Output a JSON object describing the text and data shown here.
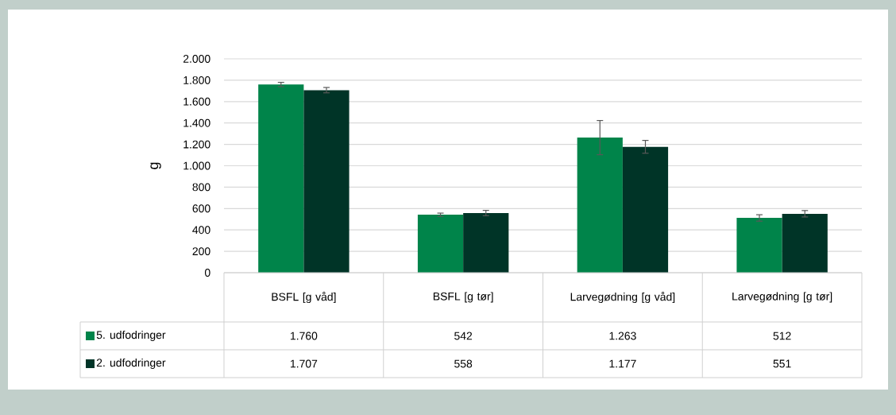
{
  "chart_data": {
    "type": "bar",
    "ylabel": "g",
    "categories": [
      "BSFL [g våd]",
      "BSFL [g tør]",
      "Larvegødning [g våd]",
      "Larvegødning [g tør]"
    ],
    "series": [
      {
        "name": "5. udfodringer",
        "color": "#00844a",
        "values": [
          1760,
          542,
          1263,
          512
        ],
        "errors": [
          20,
          15,
          160,
          30
        ],
        "value_labels": [
          "1.760",
          "542",
          "1.263",
          "512"
        ]
      },
      {
        "name": "2. udfodringer",
        "color": "#003427",
        "values": [
          1707,
          558,
          1177,
          551
        ],
        "errors": [
          25,
          25,
          60,
          30
        ],
        "value_labels": [
          "1.707",
          "558",
          "1.177",
          "551"
        ]
      }
    ],
    "ylim": [
      0,
      2000
    ],
    "yticks": [
      {
        "value": 0,
        "label": "0"
      },
      {
        "value": 200,
        "label": "200"
      },
      {
        "value": 400,
        "label": "400"
      },
      {
        "value": 600,
        "label": "600"
      },
      {
        "value": 800,
        "label": "800"
      },
      {
        "value": 1000,
        "label": "1.000"
      },
      {
        "value": 1200,
        "label": "1.200"
      },
      {
        "value": 1400,
        "label": "1.400"
      },
      {
        "value": 1600,
        "label": "1.600"
      },
      {
        "value": 1800,
        "label": "1.800"
      },
      {
        "value": 2000,
        "label": "2.000"
      }
    ],
    "grid": "y",
    "legend": "bottom"
  }
}
